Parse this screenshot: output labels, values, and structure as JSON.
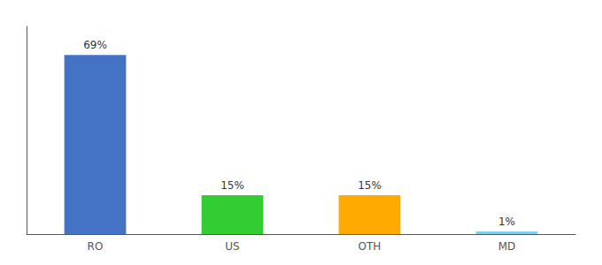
{
  "chart_data": {
    "type": "bar",
    "categories": [
      "RO",
      "US",
      "OTH",
      "MD"
    ],
    "values": [
      69,
      15,
      15,
      1
    ],
    "value_labels": [
      "69%",
      "15%",
      "15%",
      "1%"
    ],
    "colors": [
      "#4472c4",
      "#33cc33",
      "#ffaa00",
      "#87ceeb"
    ],
    "ylim": [
      0,
      80
    ],
    "grid": false,
    "tick_labels": "x",
    "data_labels": true
  }
}
